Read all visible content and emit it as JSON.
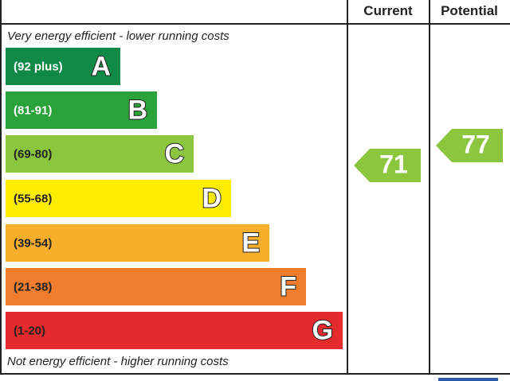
{
  "header": {
    "current": "Current",
    "potential": "Potential"
  },
  "top_note": "Very energy efficient - lower running costs",
  "bottom_note": "Not energy efficient - higher running costs",
  "bands": [
    {
      "range": "(92 plus)",
      "letter": "A"
    },
    {
      "range": "(81-91)",
      "letter": "B"
    },
    {
      "range": "(69-80)",
      "letter": "C"
    },
    {
      "range": "(55-68)",
      "letter": "D"
    },
    {
      "range": "(39-54)",
      "letter": "E"
    },
    {
      "range": "(21-38)",
      "letter": "F"
    },
    {
      "range": "(1-20)",
      "letter": "G"
    }
  ],
  "current": {
    "value": 71
  },
  "potential": {
    "value": 77
  }
}
